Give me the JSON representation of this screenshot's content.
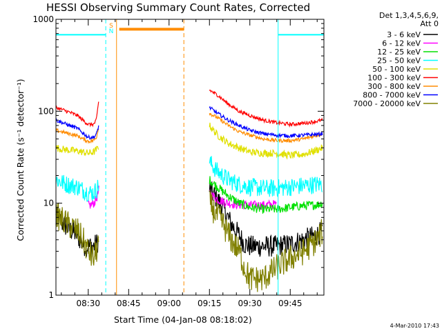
{
  "chart_data": {
    "type": "line",
    "title": "HESSI Observing Summary Count Rates, Corrected",
    "xlabel": "Start Time (04-Jan-08 08:18:02)",
    "ylabel": "Corrected Count Rate (s⁻¹ detector⁻¹)",
    "ylog": true,
    "ylim": [
      1,
      1000
    ],
    "xlim_minutes": [
      498.0,
      597.5
    ],
    "x_ticks": [
      {
        "min": 510,
        "label": "08:30"
      },
      {
        "min": 525,
        "label": "08:45"
      },
      {
        "min": 540,
        "label": "09:00"
      },
      {
        "min": 555,
        "label": "09:15"
      },
      {
        "min": 570,
        "label": "09:30"
      },
      {
        "min": 585,
        "label": "09:45"
      }
    ],
    "y_ticks": [
      {
        "value": 1,
        "label": "1"
      },
      {
        "value": 10,
        "label": "10"
      },
      {
        "value": 100,
        "label": "100"
      },
      {
        "value": 1000,
        "label": "1000"
      }
    ],
    "legend": {
      "header_line1": "Det 1,3,4,5,6,9,",
      "header_line2": "Att 0",
      "placement": "right"
    },
    "series": [
      {
        "name": "3 - 6 keV",
        "color": "#000000",
        "x": [
          498,
          502,
          506,
          508,
          510,
          512,
          513,
          514,
          555,
          557,
          560,
          563,
          566,
          568,
          570,
          575,
          580,
          585,
          590,
          595,
          597
        ],
        "y": [
          7,
          5.5,
          4.5,
          3.5,
          3.4,
          3.4,
          3.6,
          4,
          14,
          12,
          9,
          6,
          4.5,
          3.6,
          3.4,
          3.4,
          3.4,
          3.6,
          4,
          4.5,
          5
        ]
      },
      {
        "name": "6 - 12 keV",
        "color": "#ff00ff",
        "x": [
          510,
          511,
          512,
          513,
          514,
          555,
          558,
          562,
          566,
          570,
          575,
          580
        ],
        "y": [
          9.5,
          9.5,
          10,
          11,
          14,
          13,
          11,
          10,
          9.6,
          9.5,
          9.5,
          9.8
        ]
      },
      {
        "name": "12 - 25 keV",
        "color": "#00e000",
        "x": [
          555,
          558,
          562,
          566,
          570,
          575,
          580,
          585,
          590,
          595,
          597
        ],
        "y": [
          18,
          15,
          12,
          10,
          9,
          8.6,
          8.6,
          9,
          9.4,
          9.6,
          10
        ]
      },
      {
        "name": "25 - 50 keV",
        "color": "#00ffff",
        "x": [
          498,
          502,
          506,
          508,
          510,
          512,
          513,
          514,
          555,
          558,
          562,
          566,
          570,
          575,
          580,
          585,
          590,
          595,
          597
        ],
        "y": [
          18,
          16,
          15,
          14,
          13,
          13,
          14,
          16,
          28,
          22,
          18,
          16,
          15,
          14.5,
          14.5,
          15,
          15.5,
          16,
          16
        ]
      },
      {
        "name": "50 - 100 keV",
        "color": "#e0e000",
        "x": [
          498,
          502,
          506,
          508,
          510,
          512,
          513,
          514,
          555,
          558,
          562,
          566,
          570,
          575,
          580,
          585,
          590,
          595,
          597
        ],
        "y": [
          40,
          38,
          37,
          36,
          35,
          36,
          38,
          42,
          70,
          55,
          45,
          40,
          36,
          35,
          35,
          33,
          34,
          38,
          40
        ]
      },
      {
        "name": "100 - 300 keV",
        "color": "#ff0000",
        "x": [
          498,
          502,
          506,
          508,
          510,
          512,
          513,
          514,
          555,
          558,
          562,
          566,
          570,
          575,
          580,
          585,
          590,
          595,
          597
        ],
        "y": [
          110,
          100,
          90,
          80,
          72,
          72,
          80,
          140,
          170,
          150,
          120,
          100,
          90,
          80,
          75,
          72,
          74,
          78,
          80
        ]
      },
      {
        "name": "300 - 800 keV",
        "color": "#ff8c00",
        "x": [
          498,
          502,
          506,
          508,
          510,
          512,
          513,
          514,
          555,
          558,
          562,
          566,
          570,
          575,
          580,
          585,
          590,
          595,
          597
        ],
        "y": [
          62,
          58,
          54,
          50,
          47,
          48,
          52,
          70,
          95,
          85,
          70,
          60,
          55,
          50,
          48,
          48,
          50,
          55,
          57
        ]
      },
      {
        "name": "800 - 7000 keV",
        "color": "#0000ff",
        "x": [
          498,
          502,
          506,
          508,
          510,
          512,
          513,
          514,
          555,
          558,
          562,
          566,
          570,
          575,
          580,
          585,
          590,
          595,
          597
        ],
        "y": [
          80,
          72,
          65,
          58,
          52,
          52,
          56,
          72,
          110,
          95,
          80,
          70,
          62,
          57,
          55,
          54,
          55,
          56,
          57
        ]
      },
      {
        "name": "7000 - 20000 keV",
        "color": "#808000",
        "x": [
          498,
          502,
          506,
          508,
          510,
          512,
          513,
          514,
          555,
          557,
          560,
          563,
          566,
          568,
          570,
          575,
          580,
          585,
          590,
          595,
          597
        ],
        "y": [
          7.5,
          6,
          5,
          4,
          3,
          2.5,
          3,
          4,
          10,
          8,
          6,
          4,
          3,
          2,
          1.5,
          1.5,
          2,
          2.5,
          3,
          4,
          5
        ]
      }
    ],
    "attenuator_state_bar": {
      "color": "#ff8c00",
      "value": 780,
      "x_start": 521.5,
      "x_end": 545.5
    },
    "saa_bar": {
      "color": "#00ffff",
      "value": 680,
      "segments": [
        [
          498,
          516.5
        ],
        [
          580.5,
          597.5
        ]
      ]
    },
    "vertical_markers": [
      {
        "x": 516.5,
        "color": "#00ffff",
        "style": "dashed"
      },
      {
        "x": 520.5,
        "color": "#ff8c00",
        "style": "solid"
      },
      {
        "x": 545.5,
        "color": "#ff8c00",
        "style": "dashed"
      },
      {
        "x": 580.5,
        "color": "#00ffff",
        "style": "solid"
      },
      {
        "x": 597.5,
        "color": "#00ffff",
        "style": "dashed"
      }
    ],
    "marker_labels": [
      {
        "text": "S",
        "x": 518.5,
        "color": "#ff8c00"
      },
      {
        "text": "N",
        "x": 518.5,
        "color": "#00ffff"
      }
    ],
    "footer_date": "4-Mar-2010 17:43"
  }
}
